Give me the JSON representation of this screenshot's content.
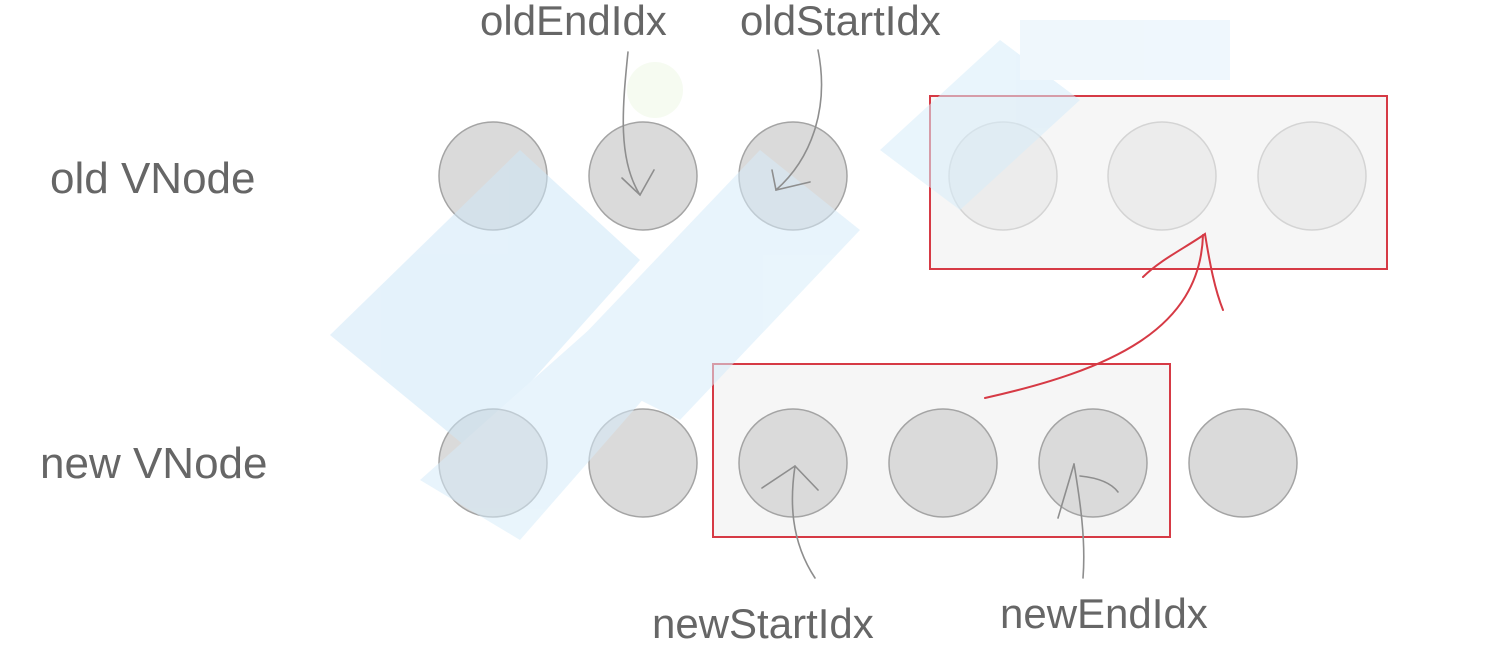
{
  "labels": {
    "old_row": "old VNode",
    "new_row": "new VNode",
    "old_end_idx": "oldEndIdx",
    "old_start_idx": "oldStartIdx",
    "new_start_idx": "newStartIdx",
    "new_end_idx": "newEndIdx"
  },
  "colors": {
    "highlight_border": "#d63a45",
    "pointer_arrow": "#8e8e8e",
    "node_fill": "#dadada",
    "watermark": "#cfe8f8"
  }
}
